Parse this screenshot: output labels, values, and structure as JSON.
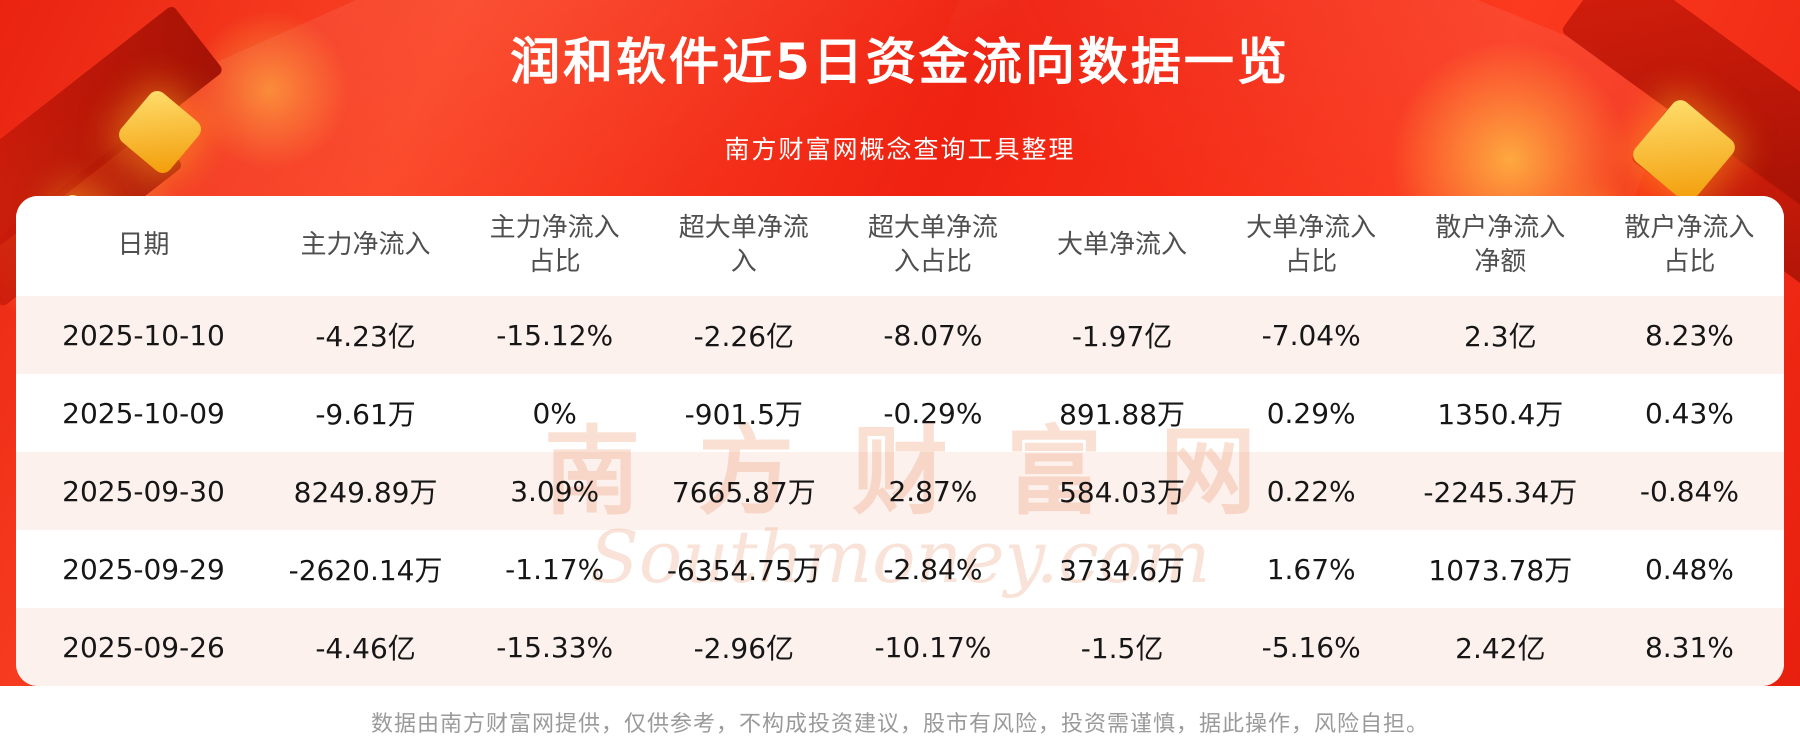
{
  "page": {
    "title": "润和软件近5日资金流向数据一览",
    "subtitle": "南方财富网概念查询工具整理",
    "watermark_cn": "南方财富网",
    "watermark_en": "Southmoney.com",
    "footer": "数据由南方财富网提供，仅供参考，不构成投资建议，股市有风险，投资需谨慎，据此操作，风险自担。"
  },
  "colors": {
    "banner_red": "#ee2413",
    "ribbon_dark_red": "#9c0f03",
    "gold_accent": "#f6a818",
    "row_alt_pink": "#fdf1ee",
    "header_text": "#4f4f4f",
    "cell_text": "#161616",
    "watermark": "#eb976e",
    "footer_text": "#9a9a9a"
  },
  "chart_data": {
    "type": "table",
    "title": "润和软件近5日资金流向数据一览",
    "columns": [
      "日期",
      "主力净流入",
      "主力净流入占比",
      "超大单净流入",
      "超大单净流入占比",
      "大单净流入",
      "大单净流入占比",
      "散户净流入净额",
      "散户净流入占比"
    ],
    "rows": [
      [
        "2025-10-10",
        "-4.23亿",
        "-15.12%",
        "-2.26亿",
        "-8.07%",
        "-1.97亿",
        "-7.04%",
        "2.3亿",
        "8.23%"
      ],
      [
        "2025-10-09",
        "-9.61万",
        "0%",
        "-901.5万",
        "-0.29%",
        "891.88万",
        "0.29%",
        "1350.4万",
        "0.43%"
      ],
      [
        "2025-09-30",
        "8249.89万",
        "3.09%",
        "7665.87万",
        "2.87%",
        "584.03万",
        "0.22%",
        "-2245.34万",
        "-0.84%"
      ],
      [
        "2025-09-29",
        "-2620.14万",
        "-1.17%",
        "-6354.75万",
        "-2.84%",
        "3734.6万",
        "1.67%",
        "1073.78万",
        "0.48%"
      ],
      [
        "2025-09-26",
        "-4.46亿",
        "-15.33%",
        "-2.96亿",
        "-10.17%",
        "-1.5亿",
        "-5.16%",
        "2.42亿",
        "8.31%"
      ]
    ]
  }
}
